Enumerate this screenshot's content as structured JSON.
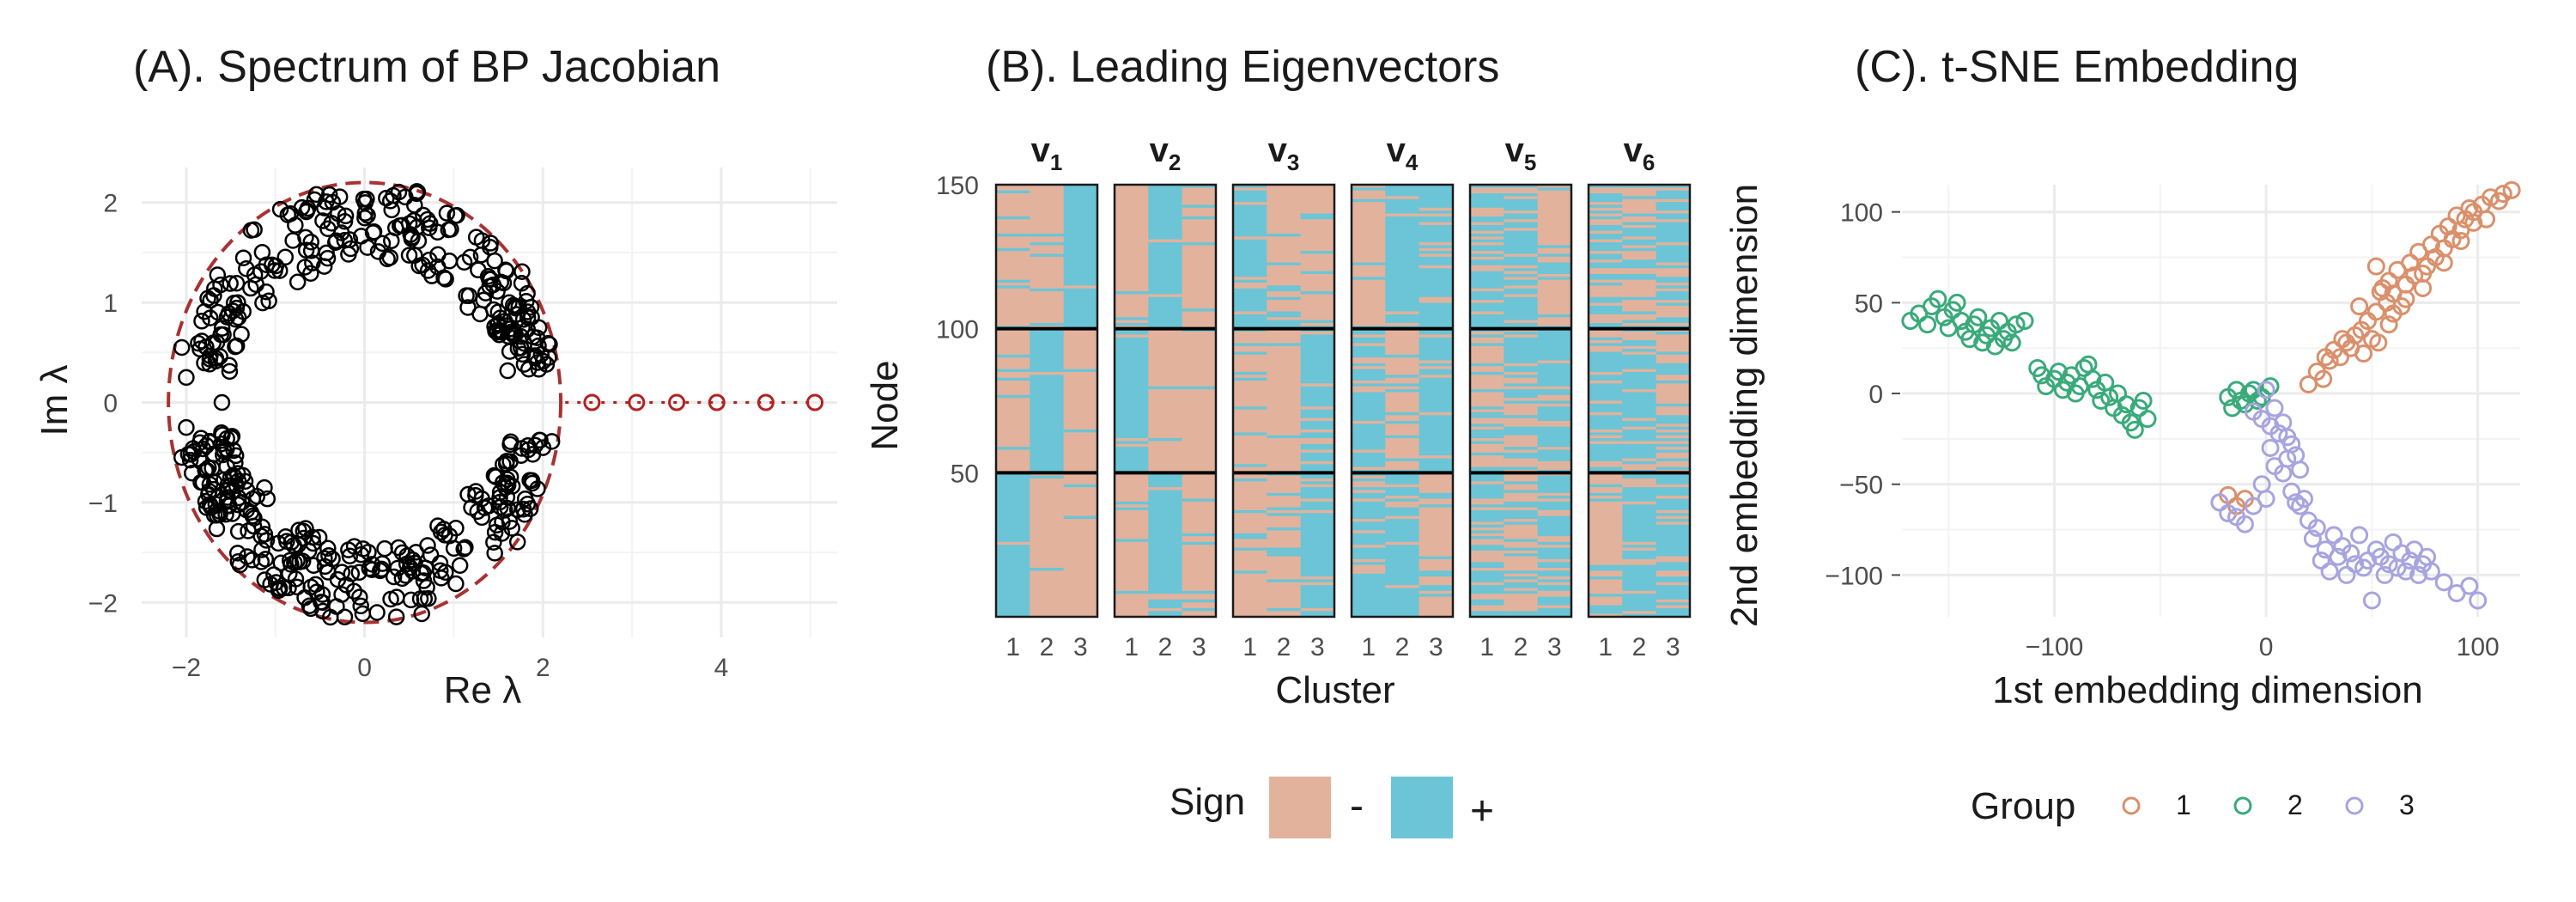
{
  "colors": {
    "gridMajor": "#ebebeb",
    "gridMinor": "#f3f3f3",
    "text": "#1a1a1a",
    "tick": "#4d4d4d",
    "circle": "#a83232",
    "spectrumPoint": "#000000",
    "outlier": "#b22222",
    "signNeg": "#e3b29c",
    "signPos": "#6bc5d6",
    "group1": "#d9906b",
    "group2": "#3aaa7b",
    "group3": "#a8a4e0"
  },
  "chart_data": [
    {
      "panel": "A",
      "type": "scatter",
      "title": "(A). Spectrum of BP Jacobian",
      "xlabel": "Re λ",
      "ylabel": "Im λ",
      "xlim": [
        -2.5,
        5.3
      ],
      "ylim": [
        -2.35,
        2.35
      ],
      "xticks": [
        -2,
        0,
        2,
        4
      ],
      "yticks": [
        -2,
        -1,
        0,
        1,
        2
      ],
      "grid": true,
      "circle": {
        "center": [
          0,
          0
        ],
        "radius": 2.2,
        "style": "dashed"
      },
      "bulk": {
        "count": 520,
        "description": "ring of complex eigenvalues with |λ| roughly between 1.2 and 2.2"
      },
      "outliers": {
        "x": [
          2.55,
          3.05,
          3.5,
          3.95,
          4.5,
          5.05
        ],
        "y": [
          0,
          0,
          0,
          0,
          0,
          0
        ]
      }
    },
    {
      "panel": "B",
      "type": "heatmap",
      "title": "(B). Leading Eigenvectors",
      "xlabel": "Cluster",
      "ylabel": "Node",
      "facets": [
        "v1",
        "v2",
        "v3",
        "v4",
        "v5",
        "v6"
      ],
      "xcategories": [
        "1",
        "2",
        "3"
      ],
      "yticks": [
        50,
        100,
        150
      ],
      "ylim": [
        0,
        150
      ],
      "blocks": [
        50,
        100
      ],
      "legend": {
        "title": "Sign",
        "items": [
          "-",
          "+"
        ],
        "position": "bottom"
      },
      "cells": [
        [
          [
            "+",
            "-",
            "-"
          ],
          [
            "-",
            "+",
            "-"
          ],
          [
            "-",
            "-",
            "+"
          ],
          [
            "+",
            "+",
            "-"
          ],
          [
            "+",
            "-",
            "+"
          ],
          [
            "-",
            "+",
            "+"
          ]
        ],
        [
          [
            "-",
            "+",
            "-"
          ],
          [
            "+",
            "-",
            "-"
          ],
          [
            "-",
            "-",
            "+"
          ],
          [
            "+",
            "-",
            "+"
          ],
          [
            "-",
            "+",
            "+"
          ],
          [
            "+",
            "+",
            "-"
          ]
        ],
        [
          [
            "-",
            "-",
            "+"
          ],
          [
            "-",
            "+",
            "-"
          ],
          [
            "+",
            "-",
            "-"
          ],
          [
            "-",
            "+",
            "+"
          ],
          [
            "+",
            "+",
            "-"
          ],
          [
            "+",
            "-",
            "+"
          ]
        ]
      ]
    },
    {
      "panel": "C",
      "type": "scatter",
      "title": "(C). t-SNE Embedding",
      "xlabel": "1st embedding dimension",
      "ylabel": "2nd embedding dimension",
      "xlim": [
        -172,
        120
      ],
      "ylim": [
        -123,
        115
      ],
      "xticks": [
        -100,
        0,
        100
      ],
      "yticks": [
        -100,
        -50,
        0,
        50,
        100
      ],
      "grid": true,
      "legend": {
        "title": "Group",
        "items": [
          "1",
          "2",
          "3"
        ],
        "position": "bottom"
      },
      "series": [
        {
          "name": "1",
          "points": [
            [
              -22,
              -60
            ],
            [
              -18,
              -56
            ],
            [
              -14,
              -62
            ],
            [
              -10,
              -58
            ],
            [
              20,
              5
            ],
            [
              24,
              12
            ],
            [
              27,
              8
            ],
            [
              30,
              18
            ],
            [
              32,
              24
            ],
            [
              35,
              20
            ],
            [
              38,
              28
            ],
            [
              40,
              25
            ],
            [
              42,
              32
            ],
            [
              45,
              35
            ],
            [
              46,
              22
            ],
            [
              48,
              40
            ],
            [
              50,
              30
            ],
            [
              52,
              45
            ],
            [
              53,
              28
            ],
            [
              55,
              58
            ],
            [
              57,
              50
            ],
            [
              58,
              62
            ],
            [
              60,
              55
            ],
            [
              62,
              68
            ],
            [
              64,
              48
            ],
            [
              66,
              60
            ],
            [
              68,
              72
            ],
            [
              70,
              65
            ],
            [
              72,
              78
            ],
            [
              74,
              58
            ],
            [
              76,
              70
            ],
            [
              78,
              82
            ],
            [
              80,
              75
            ],
            [
              82,
              88
            ],
            [
              84,
              80
            ],
            [
              86,
              92
            ],
            [
              88,
              85
            ],
            [
              90,
              98
            ],
            [
              92,
              90
            ],
            [
              94,
              96
            ],
            [
              96,
              102
            ],
            [
              98,
              94
            ],
            [
              102,
              104
            ],
            [
              106,
              108
            ],
            [
              110,
              106
            ],
            [
              112,
              110
            ],
            [
              116,
              112
            ],
            [
              52,
              70
            ],
            [
              44,
              48
            ],
            [
              36,
              30
            ],
            [
              28,
              20
            ],
            [
              58,
              38
            ],
            [
              66,
              52
            ],
            [
              74,
              66
            ],
            [
              84,
              72
            ],
            [
              92,
              84
            ],
            [
              98,
              100
            ],
            [
              104,
              96
            ],
            [
              60,
              44
            ],
            [
              54,
              56
            ]
          ]
        },
        {
          "name": "2",
          "points": [
            [
              -168,
              40
            ],
            [
              -164,
              44
            ],
            [
              -160,
              38
            ],
            [
              -158,
              48
            ],
            [
              -155,
              52
            ],
            [
              -152,
              42
            ],
            [
              -150,
              36
            ],
            [
              -148,
              46
            ],
            [
              -146,
              50
            ],
            [
              -144,
              40
            ],
            [
              -142,
              34
            ],
            [
              -140,
              30
            ],
            [
              -138,
              38
            ],
            [
              -136,
              42
            ],
            [
              -134,
              28
            ],
            [
              -132,
              32
            ],
            [
              -130,
              36
            ],
            [
              -128,
              26
            ],
            [
              -126,
              40
            ],
            [
              -124,
              30
            ],
            [
              -122,
              34
            ],
            [
              -120,
              28
            ],
            [
              -118,
              38
            ],
            [
              -114,
              40
            ],
            [
              -108,
              14
            ],
            [
              -106,
              10
            ],
            [
              -104,
              4
            ],
            [
              -100,
              8
            ],
            [
              -98,
              12
            ],
            [
              -96,
              2
            ],
            [
              -94,
              6
            ],
            [
              -92,
              10
            ],
            [
              -90,
              0
            ],
            [
              -88,
              4
            ],
            [
              -86,
              14
            ],
            [
              -84,
              16
            ],
            [
              -82,
              8
            ],
            [
              -80,
              2
            ],
            [
              -78,
              -4
            ],
            [
              -76,
              6
            ],
            [
              -74,
              -2
            ],
            [
              -72,
              -8
            ],
            [
              -70,
              0
            ],
            [
              -68,
              -12
            ],
            [
              -66,
              -6
            ],
            [
              -64,
              -16
            ],
            [
              -62,
              -20
            ],
            [
              -60,
              -8
            ],
            [
              -58,
              -4
            ],
            [
              -56,
              -14
            ],
            [
              -18,
              -2
            ],
            [
              -16,
              -8
            ],
            [
              -14,
              2
            ],
            [
              -12,
              -4
            ],
            [
              -10,
              -6
            ],
            [
              -8,
              0
            ],
            [
              -6,
              2
            ],
            [
              -4,
              -4
            ],
            [
              -2,
              -2
            ],
            [
              2,
              4
            ]
          ]
        },
        {
          "name": "3",
          "points": [
            [
              -22,
              -60
            ],
            [
              -18,
              -66
            ],
            [
              -14,
              -68
            ],
            [
              -10,
              -72
            ],
            [
              -6,
              -62
            ],
            [
              -2,
              -50
            ],
            [
              0,
              -58
            ],
            [
              2,
              -30
            ],
            [
              4,
              -40
            ],
            [
              6,
              -22
            ],
            [
              8,
              -44
            ],
            [
              10,
              -36
            ],
            [
              12,
              -54
            ],
            [
              14,
              -60
            ],
            [
              16,
              -62
            ],
            [
              18,
              -58
            ],
            [
              20,
              -70
            ],
            [
              22,
              -80
            ],
            [
              24,
              -74
            ],
            [
              26,
              -92
            ],
            [
              28,
              -86
            ],
            [
              30,
              -98
            ],
            [
              32,
              -78
            ],
            [
              34,
              -90
            ],
            [
              36,
              -84
            ],
            [
              38,
              -100
            ],
            [
              40,
              -88
            ],
            [
              42,
              -94
            ],
            [
              44,
              -78
            ],
            [
              46,
              -96
            ],
            [
              48,
              -92
            ],
            [
              50,
              -114
            ],
            [
              52,
              -86
            ],
            [
              54,
              -90
            ],
            [
              56,
              -100
            ],
            [
              58,
              -94
            ],
            [
              60,
              -82
            ],
            [
              62,
              -96
            ],
            [
              64,
              -88
            ],
            [
              66,
              -98
            ],
            [
              68,
              -92
            ],
            [
              70,
              -86
            ],
            [
              72,
              -100
            ],
            [
              74,
              -94
            ],
            [
              76,
              -90
            ],
            [
              78,
              -98
            ],
            [
              84,
              -104
            ],
            [
              90,
              -110
            ],
            [
              96,
              -106
            ],
            [
              100,
              -114
            ],
            [
              -6,
              -10
            ],
            [
              -2,
              -14
            ],
            [
              2,
              -18
            ],
            [
              0,
              2
            ],
            [
              4,
              -8
            ],
            [
              8,
              -16
            ],
            [
              10,
              -24
            ],
            [
              12,
              -28
            ],
            [
              14,
              -34
            ],
            [
              16,
              -42
            ]
          ]
        }
      ]
    }
  ]
}
